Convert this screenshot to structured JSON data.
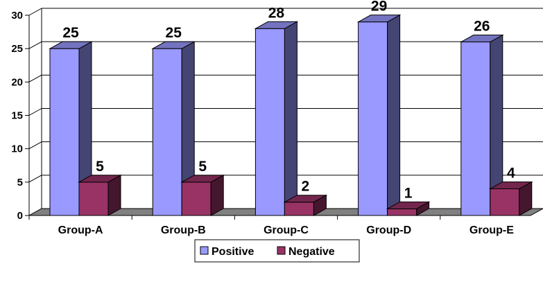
{
  "chart_data": {
    "type": "bar",
    "categories": [
      "Group-A",
      "Group-B",
      "Group-C",
      "Group-D",
      "Group-E"
    ],
    "series": [
      {
        "name": "Positive",
        "values": [
          25,
          25,
          28,
          29,
          26
        ],
        "color": "#9999ff"
      },
      {
        "name": "Negative",
        "values": [
          5,
          5,
          2,
          1,
          4
        ],
        "color": "#993366"
      }
    ],
    "y_ticks": [
      "0",
      "5",
      "10",
      "15",
      "20",
      "25",
      "30"
    ],
    "ylim": [
      0,
      30
    ],
    "grid": true,
    "legend_position": "bottom",
    "style": "3d-column"
  }
}
